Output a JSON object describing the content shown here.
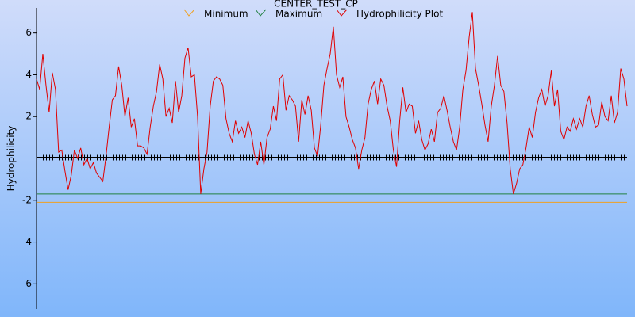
{
  "chart_data": {
    "type": "line",
    "title": "CENTER_TEST_CP",
    "y_label": "Hydrophilicity",
    "ylim": [
      -7.2,
      7.2
    ],
    "yticks": [
      -6,
      -4,
      -2,
      2,
      4,
      6
    ],
    "series": [
      {
        "name": "Minimum",
        "color": "#f0a020",
        "values": [
          -2.1
        ],
        "style": "constant"
      },
      {
        "name": "Maximum",
        "color": "#208040",
        "values": [
          -1.7
        ],
        "style": "constant"
      },
      {
        "name": "Hydrophilicity Plot",
        "color": "#e00000",
        "values": [
          3.8,
          3.3,
          5.0,
          3.5,
          2.2,
          4.1,
          3.3,
          0.3,
          0.4,
          -0.6,
          -1.5,
          -0.8,
          0.4,
          0,
          0.5,
          -0.3,
          0,
          -0.5,
          -0.2,
          -0.7,
          -0.9,
          -1.1,
          0.1,
          1.5,
          2.8,
          3.0,
          4.4,
          3.5,
          2.0,
          2.9,
          1.5,
          1.9,
          0.6,
          0.6,
          0.5,
          0.2,
          1.5,
          2.5,
          3.2,
          4.5,
          3.8,
          2.0,
          2.4,
          1.7,
          3.7,
          2.2,
          3.0,
          4.8,
          5.3,
          3.9,
          4.0,
          2.0,
          -1.7,
          -0.5,
          0.3,
          2.5,
          3.7,
          3.9,
          3.8,
          3.5,
          1.9,
          1.2,
          0.8,
          1.8,
          1.2,
          1.5,
          1.0,
          1.8,
          1.2,
          0.2,
          -0.3,
          0.8,
          -0.3,
          1.0,
          1.4,
          2.5,
          1.8,
          3.8,
          4.0,
          2.3,
          3.0,
          2.8,
          2.5,
          0.8,
          2.8,
          2.1,
          3.0,
          2.3,
          0.5,
          0.1,
          1.6,
          3.5,
          4.3,
          5.0,
          6.3,
          4.0,
          3.4,
          3.9,
          2.0,
          1.5,
          0.9,
          0.5,
          -0.5,
          0.4,
          1.0,
          2.6,
          3.3,
          3.7,
          2.6,
          3.8,
          3.5,
          2.5,
          1.8,
          0.4,
          -0.4,
          1.8,
          3.4,
          2.2,
          2.6,
          2.5,
          1.2,
          1.8,
          0.9,
          0.4,
          0.7,
          1.4,
          0.8,
          2.2,
          2.4,
          3.0,
          2.3,
          1.5,
          0.8,
          0.4,
          1.5,
          3.3,
          4.2,
          5.8,
          7.0,
          4.3,
          3.5,
          2.6,
          1.6,
          0.8,
          2.5,
          3.5,
          4.9,
          3.5,
          3.2,
          1.7,
          -0.5,
          -1.7,
          -1.2,
          -0.5,
          -0.3,
          0.5,
          1.5,
          1.0,
          2.2,
          2.9,
          3.3,
          2.5,
          3.0,
          4.2,
          2.5,
          3.3,
          1.3,
          0.9,
          1.5,
          1.3,
          1.9,
          1.4,
          1.9,
          1.5,
          2.5,
          3.0,
          2.1,
          1.5,
          1.6,
          2.7,
          2.0,
          1.8,
          3.0,
          1.7,
          2.2,
          4.3,
          3.8,
          2.5
        ]
      }
    ]
  }
}
